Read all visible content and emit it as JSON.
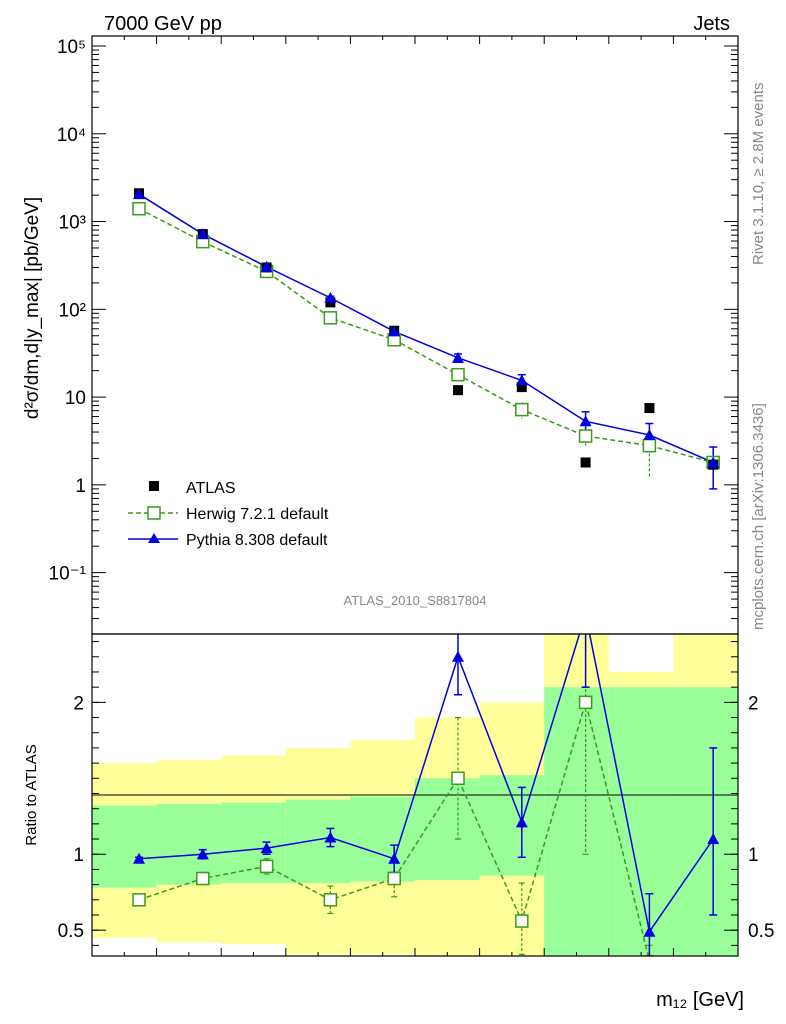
{
  "header": {
    "left": "7000 GeV pp",
    "right": "Jets",
    "analysis": "ATLAS_2010_S8817804",
    "side_top": "Rivet 3.1.10, ≥ 2.8M events",
    "side_bottom": "mcplots.cern.ch [arXiv:1306.3436]"
  },
  "colors": {
    "data": "#000000",
    "herwig": "#3a9a1a",
    "pythia": "#0000e0",
    "band_inner": "#99ff99",
    "band_outer": "#ffff99"
  },
  "chart_data": [
    {
      "type": "scatter",
      "panel": "main",
      "ylabel": "d²σ/dm,d|y_max| [pb/GeV]",
      "yscale": "log",
      "ylim": [
        0.02,
        130000
      ],
      "y_tick_labels": [
        "10⁻¹",
        "1",
        "10",
        "10²",
        "10³",
        "10⁴",
        "10⁵"
      ],
      "legend_position": "bottom-left",
      "x": [
        1,
        2,
        3,
        4,
        5,
        6,
        7,
        8,
        9,
        10
      ],
      "series": [
        {
          "name": "ATLAS",
          "marker": "filled-square",
          "values": [
            2100,
            720,
            300,
            120,
            57,
            12,
            13,
            1.8,
            7.5,
            1.7
          ]
        },
        {
          "name": "Herwig 7.2.1 default",
          "marker": "open-square",
          "line": "dashed",
          "values": [
            1400,
            590,
            270,
            80,
            45,
            18,
            7.2,
            3.6,
            2.8,
            1.8
          ],
          "errors": [
            50,
            20,
            10,
            5,
            3,
            2.5,
            1.5,
            0.8,
            1.6,
            0.3
          ]
        },
        {
          "name": "Pythia 8.308 default",
          "marker": "filled-triangle",
          "line": "solid",
          "values": [
            2050,
            720,
            305,
            135,
            56,
            28,
            15.5,
            5.3,
            3.7,
            1.8
          ],
          "errors": [
            60,
            25,
            10,
            6,
            3,
            3,
            2.5,
            1.5,
            1.3,
            0.9
          ]
        }
      ]
    },
    {
      "type": "line",
      "panel": "ratio",
      "ylabel": "Ratio to ATLAS",
      "xlabel": "m₁₂ [GeV]",
      "ylim": [
        0.33,
        2.45
      ],
      "y_tick_labels": [
        "0.5",
        "1",
        "2"
      ],
      "x": [
        1,
        2,
        3,
        4,
        5,
        6,
        7,
        8,
        9,
        10
      ],
      "bands": {
        "edges": [
          0.5,
          1.5,
          2.5,
          3.5,
          4.5,
          5.5,
          6.5,
          7.5,
          8.5,
          9.5,
          10.5
        ],
        "inner_low": [
          0.78,
          0.8,
          0.81,
          0.81,
          0.82,
          0.83,
          0.86,
          0.33,
          0.33,
          0.33
        ],
        "inner_high": [
          1.32,
          1.33,
          1.34,
          1.36,
          1.38,
          1.5,
          1.52,
          2.1,
          2.1,
          2.1
        ],
        "outer_low": [
          0.45,
          0.42,
          0.41,
          0.34,
          0.34,
          0.33,
          0.33,
          0.33,
          0.35,
          0.33
        ],
        "outer_high": [
          1.6,
          1.62,
          1.65,
          1.7,
          1.75,
          1.9,
          2.0,
          2.45,
          2.2,
          2.45
        ]
      },
      "series": [
        {
          "name": "Herwig 7.2.1 default",
          "values": [
            0.7,
            0.84,
            0.92,
            0.7,
            0.84,
            1.5,
            0.56,
            2.0,
            0.3,
            null
          ],
          "err_low": [
            0.02,
            0.04,
            0.05,
            0.09,
            0.12,
            0.4,
            0.22,
            1.0,
            0.1,
            null
          ],
          "err_high": [
            0.02,
            0.04,
            0.05,
            0.09,
            0.12,
            0.4,
            0.25,
            1.4,
            0.1,
            null
          ]
        },
        {
          "name": "Pythia 8.308 default",
          "values": [
            0.97,
            1.0,
            1.04,
            1.11,
            0.97,
            2.3,
            1.21,
            2.6,
            0.49,
            1.1
          ],
          "err_low": [
            0.01,
            0.03,
            0.04,
            0.06,
            0.09,
            0.25,
            0.23,
            0.5,
            0.16,
            0.5
          ],
          "err_high": [
            0.01,
            0.03,
            0.04,
            0.06,
            0.09,
            0.25,
            0.23,
            0.5,
            0.25,
            0.6
          ]
        }
      ]
    }
  ]
}
